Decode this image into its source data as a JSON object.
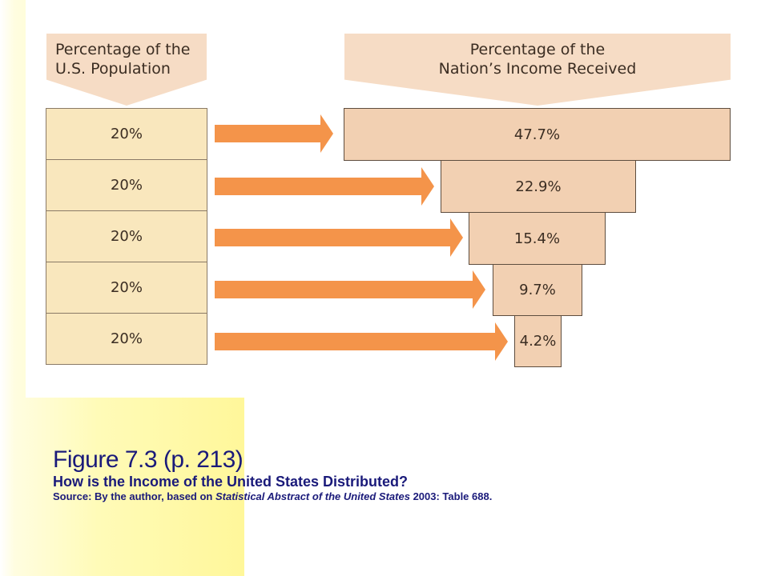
{
  "headers": {
    "population": "Percentage of the\nU.S. Population",
    "income": "Percentage of the\nNation’s Income Received"
  },
  "population_shares": [
    "20%",
    "20%",
    "20%",
    "20%",
    "20%"
  ],
  "income_shares": [
    "47.7%",
    "22.9%",
    "15.4%",
    "9.7%",
    "4.2%"
  ],
  "colors": {
    "header_fill": "#f6dcc5",
    "population_fill": "#f9e7bd",
    "income_fill": "#f2d0b2",
    "arrow": "#f4944a",
    "caption_text": "#1a1a7a",
    "background_yellow": "#fff9a8"
  },
  "caption": {
    "figure": "Figure 7.3  (p. 213)",
    "subtitle": "How is the Income of the United States Distributed?",
    "source_prefix": "Source: By the author, based on ",
    "source_italic": "Statistical Abstract of the United States",
    "source_suffix": " 2003: Table 688."
  }
}
